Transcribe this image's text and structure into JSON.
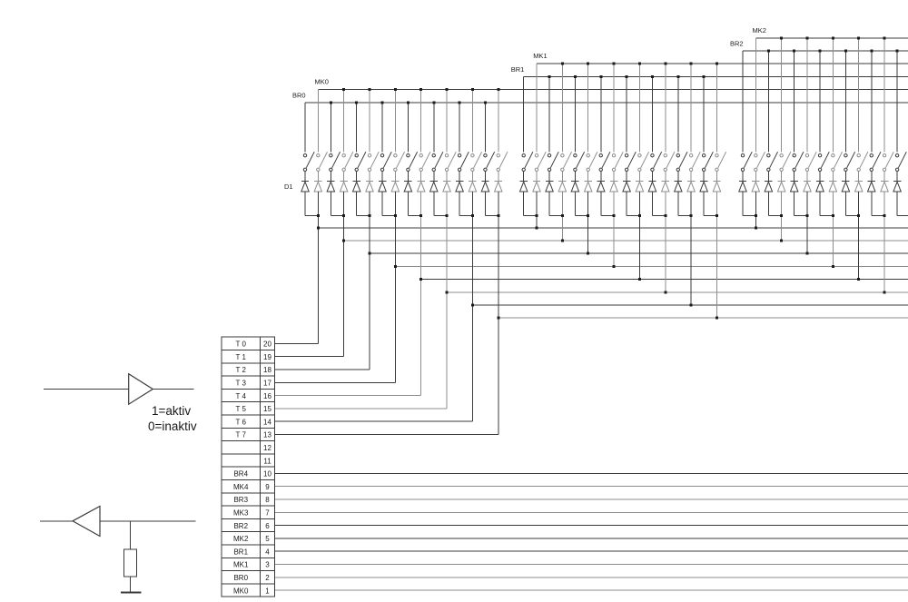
{
  "colors": {
    "wire_dark": "#3b3b3b",
    "wire_gray": "#8d8d8d",
    "dot": "#1c1c1c",
    "text": "#1a1a1a",
    "background": "#ffffff"
  },
  "legend": {
    "line1": "1=aktiv",
    "line2": "0=inaktiv"
  },
  "diode_label": "D1",
  "groups": [
    {
      "mk_label": "MK0",
      "br_label": "BR0"
    },
    {
      "mk_label": "MK1",
      "br_label": "BR1"
    },
    {
      "mk_label": "MK2",
      "br_label": "BR2"
    }
  ],
  "connector": {
    "rows": [
      {
        "label": "T 0",
        "pin": "20"
      },
      {
        "label": "T 1",
        "pin": "19"
      },
      {
        "label": "T 2",
        "pin": "18"
      },
      {
        "label": "T 3",
        "pin": "17"
      },
      {
        "label": "T 4",
        "pin": "16"
      },
      {
        "label": "T 5",
        "pin": "15"
      },
      {
        "label": "T 6",
        "pin": "14"
      },
      {
        "label": "T 7",
        "pin": "13"
      },
      {
        "label": "",
        "pin": "12"
      },
      {
        "label": "",
        "pin": "11"
      },
      {
        "label": "BR4",
        "pin": "10"
      },
      {
        "label": "MK4",
        "pin": "9"
      },
      {
        "label": "BR3",
        "pin": "8"
      },
      {
        "label": "MK3",
        "pin": "7"
      },
      {
        "label": "BR2",
        "pin": "6"
      },
      {
        "label": "MK2",
        "pin": "5"
      },
      {
        "label": "BR1",
        "pin": "4"
      },
      {
        "label": "MK1",
        "pin": "3"
      },
      {
        "label": "BR0",
        "pin": "2"
      },
      {
        "label": "MK0",
        "pin": "1"
      }
    ]
  }
}
